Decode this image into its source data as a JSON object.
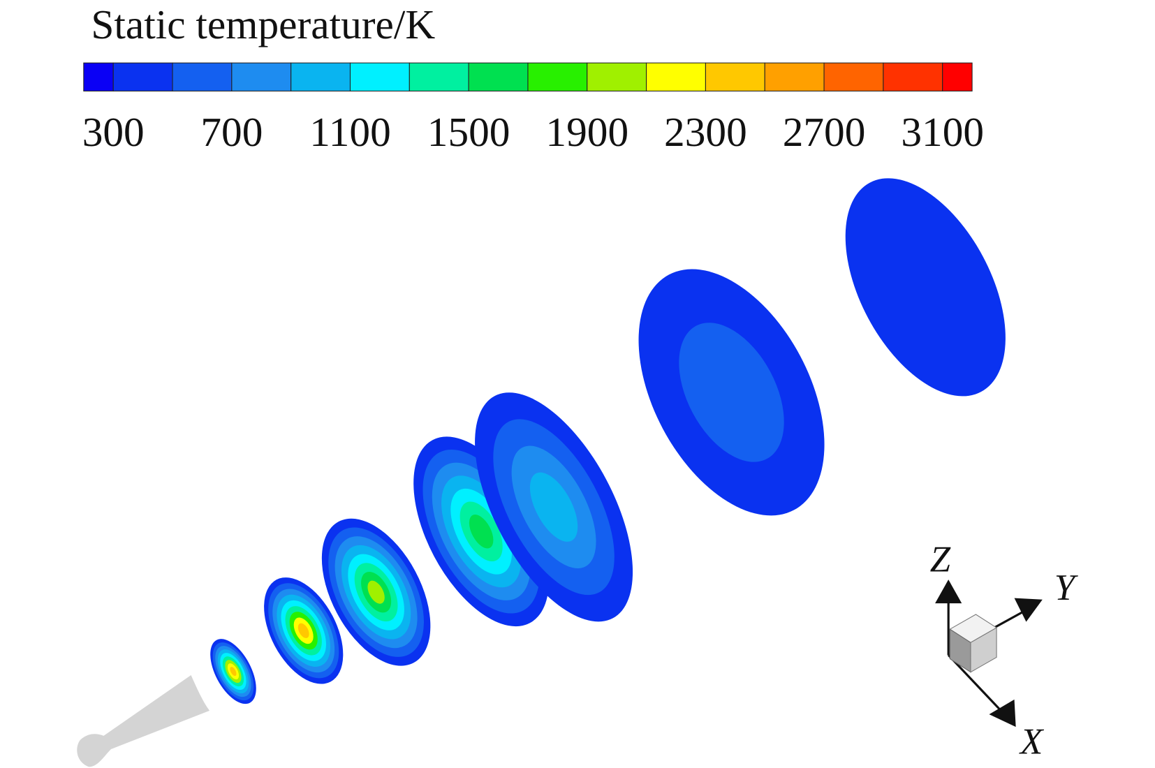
{
  "colorbar": {
    "title": "Static temperature/K",
    "labels": [
      300,
      700,
      1100,
      1500,
      1900,
      2300,
      2700,
      3100
    ],
    "colors": [
      "#0a00f5",
      "#0a32f0",
      "#1460f0",
      "#1e8cf0",
      "#0ab4f0",
      "#00f0ff",
      "#00f0a0",
      "#00e050",
      "#28f000",
      "#a0f000",
      "#ffff00",
      "#ffc800",
      "#ffa000",
      "#ff6400",
      "#ff3200",
      "#ff0000"
    ]
  },
  "axes": {
    "z": "Z",
    "y": "Y",
    "x": "X"
  }
}
